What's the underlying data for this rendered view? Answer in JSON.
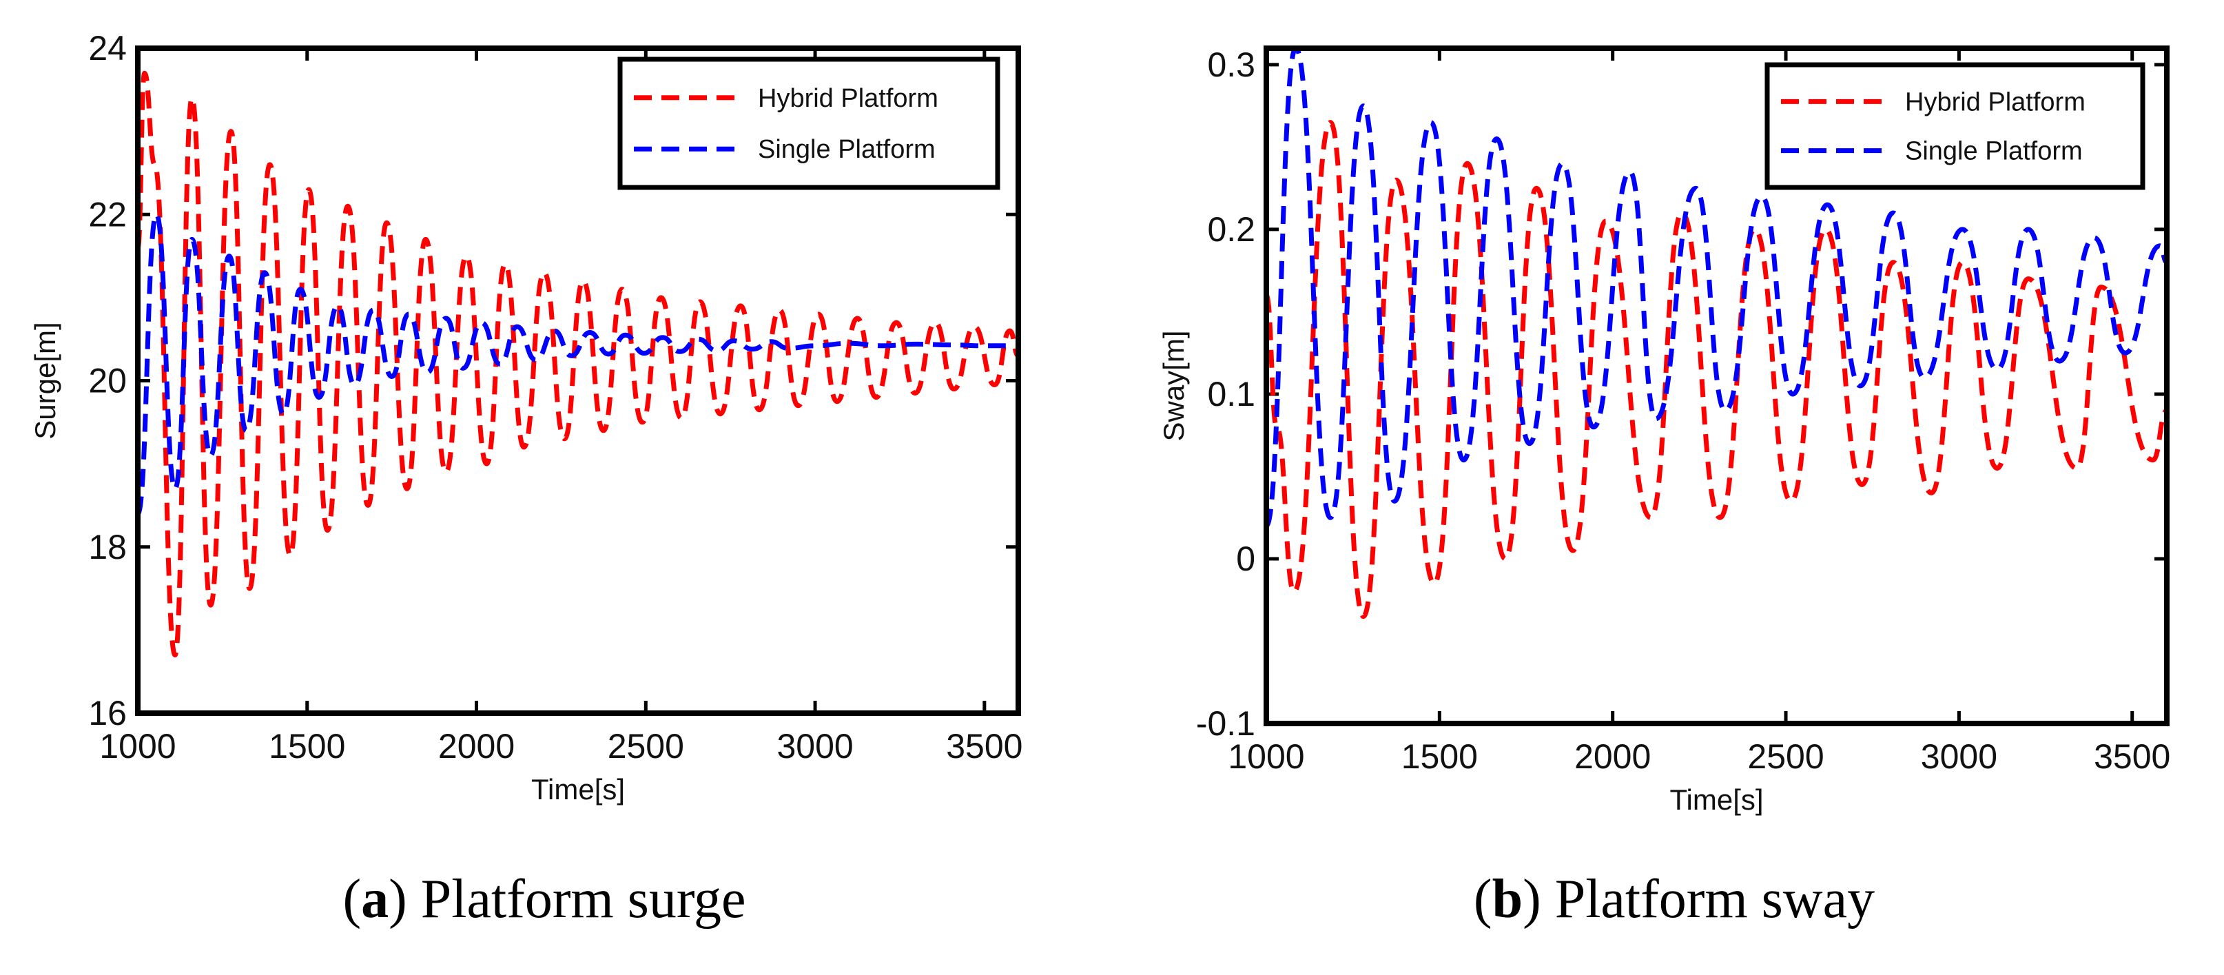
{
  "figure": {
    "captions": [
      {
        "open": "(",
        "letter": "a",
        "close": ")",
        "text": " Platform surge"
      },
      {
        "open": "(",
        "letter": "b",
        "close": ")",
        "text": " Platform sway"
      }
    ]
  },
  "chart_data": [
    {
      "id": "surge",
      "type": "line",
      "title": "",
      "xlabel": "Time[s]",
      "ylabel": "Surge[m]",
      "xlim": [
        1000,
        3600
      ],
      "ylim": [
        16,
        24
      ],
      "xticks": [
        1000,
        1500,
        2000,
        2500,
        3000,
        3500
      ],
      "yticks": [
        16,
        18,
        20,
        22,
        24
      ],
      "ytick_labels": [
        "16",
        "18",
        "20",
        "22",
        "24"
      ],
      "legend_position": "top-right",
      "series": [
        {
          "name": "Hybrid Platform",
          "color": "#ff0000",
          "style": "dashed",
          "x": [
            1000,
            1020,
            1050,
            1110,
            1160,
            1215,
            1275,
            1330,
            1390,
            1450,
            1505,
            1560,
            1620,
            1680,
            1735,
            1795,
            1850,
            1910,
            1970,
            2030,
            2085,
            2140,
            2200,
            2260,
            2315,
            2375,
            2430,
            2490,
            2545,
            2605,
            2660,
            2720,
            2780,
            2835,
            2895,
            2950,
            3010,
            3065,
            3125,
            3180,
            3240,
            3295,
            3355,
            3410,
            3470,
            3530,
            3575,
            3600
          ],
          "y": [
            21.6,
            23.7,
            22.6,
            16.7,
            23.4,
            17.3,
            23.0,
            17.5,
            22.6,
            17.9,
            22.3,
            18.2,
            22.1,
            18.5,
            21.9,
            18.7,
            21.7,
            18.9,
            21.5,
            19.0,
            21.4,
            19.2,
            21.3,
            19.3,
            21.2,
            19.4,
            21.1,
            19.5,
            21.0,
            19.55,
            20.95,
            19.6,
            20.9,
            19.65,
            20.85,
            19.7,
            20.8,
            19.75,
            20.75,
            19.8,
            20.7,
            19.85,
            20.7,
            19.9,
            20.65,
            19.95,
            20.6,
            20.3
          ]
        },
        {
          "name": "Single Platform",
          "color": "#0000ff",
          "style": "dashed",
          "x": [
            1000,
            1055,
            1110,
            1160,
            1215,
            1270,
            1320,
            1375,
            1430,
            1480,
            1535,
            1590,
            1640,
            1695,
            1750,
            1800,
            1855,
            1910,
            1960,
            2015,
            2070,
            2120,
            2175,
            2230,
            2280,
            2335,
            2390,
            2440,
            2495,
            2550,
            2600,
            2655,
            2710,
            2760,
            2815,
            2870,
            2920,
            3000,
            3100,
            3200,
            3300,
            3400,
            3500,
            3600
          ],
          "y": [
            18.4,
            22.0,
            18.7,
            21.7,
            19.1,
            21.5,
            19.4,
            21.3,
            19.6,
            21.1,
            19.8,
            20.9,
            19.95,
            20.85,
            20.05,
            20.8,
            20.1,
            20.75,
            20.15,
            20.7,
            20.2,
            20.65,
            20.25,
            20.6,
            20.3,
            20.58,
            20.32,
            20.55,
            20.33,
            20.52,
            20.35,
            20.5,
            20.36,
            20.48,
            20.38,
            20.47,
            20.39,
            20.42,
            20.45,
            20.42,
            20.44,
            20.43,
            20.42,
            20.42
          ]
        }
      ]
    },
    {
      "id": "sway",
      "type": "line",
      "title": "",
      "xlabel": "Time[s]",
      "ylabel": "Sway[m]",
      "xlim": [
        1000,
        3600
      ],
      "ylim": [
        -0.1,
        0.31
      ],
      "xticks": [
        1000,
        1500,
        2000,
        2500,
        3000,
        3500
      ],
      "yticks": [
        -0.1,
        0,
        0.1,
        0.2,
        0.3
      ],
      "ytick_labels": [
        "-0.1",
        "0",
        "0.1",
        "0.2",
        "0.3"
      ],
      "legend_position": "top-right",
      "series": [
        {
          "name": "Hybrid Platform",
          "color": "#ff0000",
          "style": "dashed",
          "x": [
            1000,
            1030,
            1080,
            1185,
            1280,
            1375,
            1485,
            1580,
            1690,
            1780,
            1885,
            1980,
            2110,
            2200,
            2310,
            2410,
            2515,
            2615,
            2720,
            2810,
            2920,
            3010,
            3110,
            3200,
            3340,
            3410,
            3560,
            3600
          ],
          "y": [
            0.16,
            0.08,
            -0.02,
            0.265,
            -0.035,
            0.23,
            -0.015,
            0.24,
            0.0,
            0.225,
            0.005,
            0.205,
            0.025,
            0.21,
            0.025,
            0.2,
            0.035,
            0.2,
            0.045,
            0.18,
            0.04,
            0.18,
            0.055,
            0.17,
            0.055,
            0.165,
            0.06,
            0.09
          ]
        },
        {
          "name": "Single Platform",
          "color": "#0000ff",
          "style": "dashed",
          "x": [
            1000,
            1085,
            1185,
            1280,
            1370,
            1475,
            1570,
            1665,
            1760,
            1855,
            1945,
            2050,
            2125,
            2240,
            2325,
            2430,
            2520,
            2620,
            2715,
            2810,
            2900,
            3010,
            3110,
            3200,
            3290,
            3390,
            3480,
            3580,
            3600
          ],
          "y": [
            0.02,
            0.31,
            0.025,
            0.275,
            0.035,
            0.265,
            0.06,
            0.255,
            0.07,
            0.24,
            0.08,
            0.235,
            0.085,
            0.225,
            0.09,
            0.22,
            0.1,
            0.215,
            0.105,
            0.21,
            0.11,
            0.2,
            0.115,
            0.2,
            0.12,
            0.195,
            0.125,
            0.19,
            0.18
          ]
        }
      ]
    }
  ]
}
